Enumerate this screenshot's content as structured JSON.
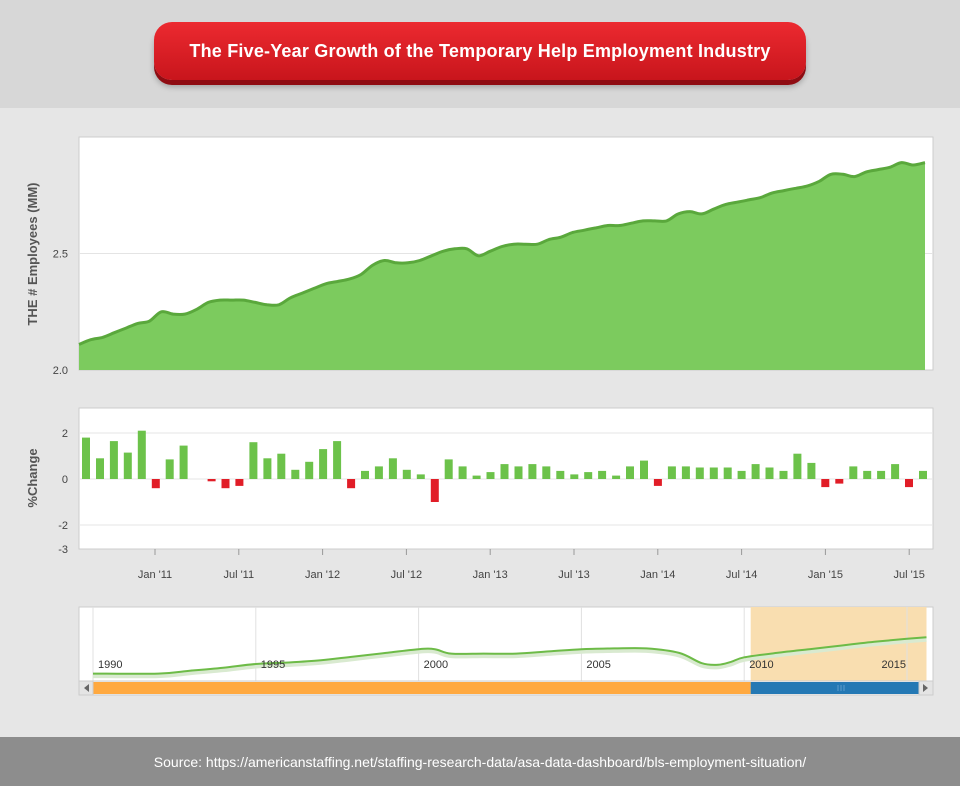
{
  "header": {
    "title": "The Five-Year Growth of the Temporary Help Employment Industry"
  },
  "footer": {
    "source": "Source: https://americanstaffing.net/staffing-research-data/asa-data-dashboard/bls-employment-situation/"
  },
  "colors": {
    "area_fill": "#7ccb5e",
    "area_line": "#5aa83c",
    "bar_positive": "#6cc24a",
    "bar_negative": "#e11d27",
    "navigator_line": "#6dbb47",
    "navigator_selection": "#f9deb0",
    "scrollbar_track": "#ffa940",
    "scrollbar_thumb": "#2478b4",
    "title_red": "#d41a20"
  },
  "chart_data": [
    {
      "type": "area",
      "title": "",
      "xlabel": "",
      "ylabel": "THE # Employees (MM)",
      "ylim": [
        2.0,
        3.0
      ],
      "yticks": [
        "2.0",
        "2.5"
      ],
      "grid": true,
      "legend": "none",
      "x_start": "2010-03",
      "x_end": "2015-08",
      "values": [
        2.11,
        2.13,
        2.14,
        2.16,
        2.18,
        2.2,
        2.21,
        2.25,
        2.24,
        2.24,
        2.26,
        2.29,
        2.3,
        2.3,
        2.3,
        2.29,
        2.28,
        2.28,
        2.31,
        2.33,
        2.35,
        2.37,
        2.38,
        2.39,
        2.41,
        2.45,
        2.47,
        2.46,
        2.46,
        2.47,
        2.49,
        2.51,
        2.52,
        2.52,
        2.49,
        2.51,
        2.53,
        2.54,
        2.54,
        2.54,
        2.56,
        2.57,
        2.59,
        2.6,
        2.61,
        2.62,
        2.62,
        2.63,
        2.64,
        2.64,
        2.64,
        2.67,
        2.68,
        2.67,
        2.69,
        2.71,
        2.72,
        2.73,
        2.74,
        2.76,
        2.77,
        2.78,
        2.79,
        2.81,
        2.84,
        2.84,
        2.83,
        2.85,
        2.86,
        2.87,
        2.89,
        2.88,
        2.89
      ]
    },
    {
      "type": "bar",
      "title": "",
      "xlabel": "",
      "ylabel": "%Change",
      "ylim": [
        -3,
        3
      ],
      "yticks": [
        "2",
        "0",
        "-2",
        "-3"
      ],
      "grid": true,
      "legend": "none",
      "x_ticks": [
        "Jan '11",
        "Jul '11",
        "Jan '12",
        "Jul '12",
        "Jan '13",
        "Jul '13",
        "Jan '14",
        "Jul '14",
        "Jan '15",
        "Jul '15"
      ],
      "values": [
        1.8,
        0.9,
        1.65,
        1.15,
        2.1,
        -0.4,
        0.85,
        1.45,
        0.0,
        -0.1,
        -0.4,
        -0.3,
        1.6,
        0.9,
        1.1,
        0.4,
        0.75,
        1.3,
        1.65,
        -0.4,
        0.35,
        0.55,
        0.9,
        0.4,
        0.2,
        -1.0,
        0.85,
        0.55,
        0.15,
        0.3,
        0.65,
        0.55,
        0.65,
        0.55,
        0.35,
        0.2,
        0.3,
        0.35,
        0.15,
        0.55,
        0.8,
        -0.3,
        0.55,
        0.55,
        0.5,
        0.5,
        0.5,
        0.35,
        0.65,
        0.5,
        0.35,
        1.1,
        0.7,
        -0.35,
        -0.2,
        0.55,
        0.35,
        0.35,
        0.65,
        -0.35,
        0.35
      ]
    },
    {
      "type": "line",
      "title": "",
      "xlabel": "",
      "ylabel": "",
      "x_ticks": [
        "1990",
        "1995",
        "2000",
        "2005",
        "2010",
        "2015"
      ],
      "x_range": [
        1990,
        2015
      ],
      "selected_range": [
        2010.2,
        2015.6
      ],
      "grid": false,
      "legend": "none",
      "x": [
        1990,
        1992,
        1993,
        1994,
        1995,
        1996,
        1997,
        1998,
        1999,
        2000,
        2000.5,
        2001,
        2002,
        2003,
        2004,
        2005,
        2006,
        2007,
        2008,
        2008.7,
        2009.2,
        2009.6,
        2010,
        2011,
        2012,
        2013,
        2014,
        2015,
        2015.6
      ],
      "y": [
        0.1,
        0.1,
        0.14,
        0.18,
        0.23,
        0.25,
        0.28,
        0.33,
        0.38,
        0.43,
        0.43,
        0.37,
        0.37,
        0.37,
        0.4,
        0.43,
        0.44,
        0.44,
        0.38,
        0.24,
        0.22,
        0.26,
        0.32,
        0.38,
        0.43,
        0.48,
        0.53,
        0.57,
        0.59
      ]
    }
  ]
}
